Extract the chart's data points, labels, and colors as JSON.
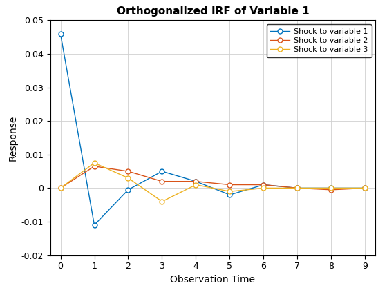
{
  "title": "Orthogonalized IRF of Variable 1",
  "xlabel": "Observation Time",
  "ylabel": "Response",
  "xlim": [
    -0.3,
    9.3
  ],
  "ylim": [
    -0.02,
    0.05
  ],
  "yticks": [
    -0.02,
    -0.01,
    0.0,
    0.01,
    0.02,
    0.03,
    0.04,
    0.05
  ],
  "xticks": [
    0,
    1,
    2,
    3,
    4,
    5,
    6,
    7,
    8,
    9
  ],
  "series": [
    {
      "label": "Shock to variable 1",
      "color": "#0072BD",
      "x": [
        0,
        1,
        2,
        3,
        4,
        5,
        6,
        7,
        8,
        9
      ],
      "y": [
        0.046,
        -0.011,
        -0.0005,
        0.005,
        0.002,
        -0.002,
        0.001,
        0.0,
        0.0,
        0.0
      ]
    },
    {
      "label": "Shock to variable 2",
      "color": "#D95319",
      "x": [
        0,
        1,
        2,
        3,
        4,
        5,
        6,
        7,
        8,
        9
      ],
      "y": [
        0.0,
        0.0065,
        0.005,
        0.002,
        0.002,
        0.001,
        0.001,
        0.0,
        -0.0005,
        0.0
      ]
    },
    {
      "label": "Shock to variable 3",
      "color": "#EDB120",
      "x": [
        0,
        1,
        2,
        3,
        4,
        5,
        6,
        7,
        8,
        9
      ],
      "y": [
        0.0,
        0.0075,
        0.003,
        -0.004,
        0.001,
        -0.001,
        0.0,
        0.0,
        0.0,
        0.0
      ]
    }
  ],
  "marker": "o",
  "marker_facecolor": "white",
  "marker_size": 5,
  "linewidth": 1.0,
  "grid_color": "#D0D0D0",
  "background_color": "#FFFFFF",
  "legend_loc": "upper right",
  "title_fontsize": 11,
  "label_fontsize": 10,
  "tick_fontsize": 9
}
